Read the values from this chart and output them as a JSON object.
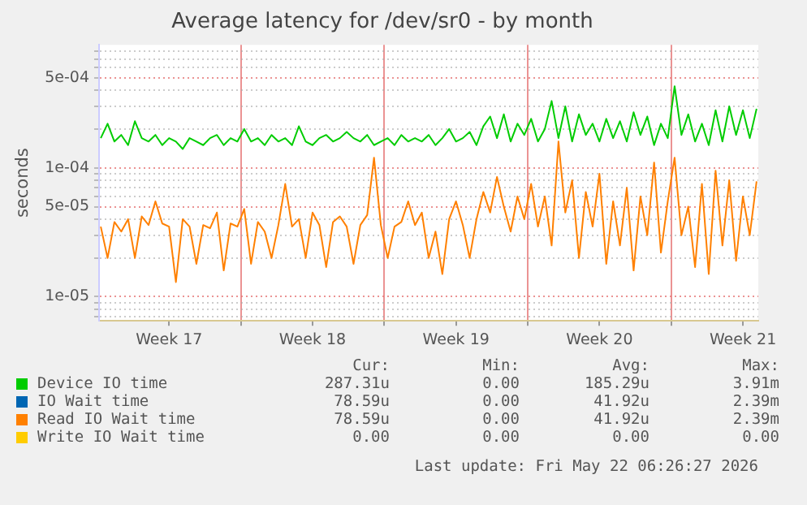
{
  "chart_data": {
    "type": "line",
    "title": "Average latency for /dev/sr0 - by month",
    "ylabel": "seconds",
    "log": "y",
    "grid": true,
    "legend": "bottom",
    "marker": "none",
    "line_style": "solid",
    "xlim": [
      "2026-04-20T02:00",
      "2026-05-22T06:00"
    ],
    "xticks": [
      {
        "value": "2026-04-23T12:00",
        "label": "Week 17"
      },
      {
        "value": "2026-04-27T00:00",
        "label": null
      },
      {
        "value": "2026-04-30T12:00",
        "label": "Week 18"
      },
      {
        "value": "2026-05-04T00:00",
        "label": null
      },
      {
        "value": "2026-05-07T12:00",
        "label": "Week 19"
      },
      {
        "value": "2026-05-11T00:00",
        "label": null
      },
      {
        "value": "2026-05-14T12:00",
        "label": "Week 20"
      },
      {
        "value": "2026-05-18T00:00",
        "label": null
      },
      {
        "value": "2026-05-21T12:00",
        "label": "Week 21"
      }
    ],
    "ylim": [
      6.5e-06,
      0.0009
    ],
    "yticks": [
      {
        "value": 7e-06,
        "label": null
      },
      {
        "value": 8e-06,
        "label": null
      },
      {
        "value": 9e-06,
        "label": null
      },
      {
        "value": 1e-05,
        "label": "1e-05"
      },
      {
        "value": 2e-05,
        "label": null
      },
      {
        "value": 3e-05,
        "label": null
      },
      {
        "value": 4e-05,
        "label": null
      },
      {
        "value": 5e-05,
        "label": "5e-05"
      },
      {
        "value": 6e-05,
        "label": null
      },
      {
        "value": 7e-05,
        "label": null
      },
      {
        "value": 8e-05,
        "label": null
      },
      {
        "value": 9e-05,
        "label": null
      },
      {
        "value": 0.0001,
        "label": "1e-04"
      },
      {
        "value": 0.0002,
        "label": null
      },
      {
        "value": 0.0003,
        "label": null
      },
      {
        "value": 0.0004,
        "label": null
      },
      {
        "value": 0.0005,
        "label": "5e-04"
      },
      {
        "value": 0.0006,
        "label": null
      },
      {
        "value": 0.0007,
        "label": null
      },
      {
        "value": 0.0008,
        "label": null
      }
    ],
    "x": [
      "2026-04-20T04:00",
      "2026-04-20T12:00",
      "2026-04-20T20:00",
      "2026-04-21T04:00",
      "2026-04-21T12:00",
      "2026-04-21T20:00",
      "2026-04-22T04:00",
      "2026-04-22T12:00",
      "2026-04-22T20:00",
      "2026-04-23T04:00",
      "2026-04-23T12:00",
      "2026-04-23T20:00",
      "2026-04-24T04:00",
      "2026-04-24T12:00",
      "2026-04-24T20:00",
      "2026-04-25T04:00",
      "2026-04-25T12:00",
      "2026-04-25T20:00",
      "2026-04-26T04:00",
      "2026-04-26T12:00",
      "2026-04-26T20:00",
      "2026-04-27T04:00",
      "2026-04-27T12:00",
      "2026-04-27T20:00",
      "2026-04-28T04:00",
      "2026-04-28T12:00",
      "2026-04-28T20:00",
      "2026-04-29T04:00",
      "2026-04-29T12:00",
      "2026-04-29T20:00",
      "2026-04-30T04:00",
      "2026-04-30T12:00",
      "2026-04-30T20:00",
      "2026-05-01T04:00",
      "2026-05-01T12:00",
      "2026-05-01T20:00",
      "2026-05-02T04:00",
      "2026-05-02T12:00",
      "2026-05-02T20:00",
      "2026-05-03T04:00",
      "2026-05-03T12:00",
      "2026-05-03T20:00",
      "2026-05-04T04:00",
      "2026-05-04T12:00",
      "2026-05-04T20:00",
      "2026-05-05T04:00",
      "2026-05-05T12:00",
      "2026-05-05T20:00",
      "2026-05-06T04:00",
      "2026-05-06T12:00",
      "2026-05-06T20:00",
      "2026-05-07T04:00",
      "2026-05-07T12:00",
      "2026-05-07T20:00",
      "2026-05-08T04:00",
      "2026-05-08T12:00",
      "2026-05-08T20:00",
      "2026-05-09T04:00",
      "2026-05-09T12:00",
      "2026-05-09T20:00",
      "2026-05-10T04:00",
      "2026-05-10T12:00",
      "2026-05-10T20:00",
      "2026-05-11T04:00",
      "2026-05-11T12:00",
      "2026-05-11T20:00",
      "2026-05-12T04:00",
      "2026-05-12T12:00",
      "2026-05-12T20:00",
      "2026-05-13T04:00",
      "2026-05-13T12:00",
      "2026-05-13T20:00",
      "2026-05-14T04:00",
      "2026-05-14T12:00",
      "2026-05-14T20:00",
      "2026-05-15T04:00",
      "2026-05-15T12:00",
      "2026-05-15T20:00",
      "2026-05-16T04:00",
      "2026-05-16T12:00",
      "2026-05-16T20:00",
      "2026-05-17T04:00",
      "2026-05-17T12:00",
      "2026-05-17T20:00",
      "2026-05-18T04:00",
      "2026-05-18T12:00",
      "2026-05-18T20:00",
      "2026-05-19T04:00",
      "2026-05-19T12:00",
      "2026-05-19T20:00",
      "2026-05-20T04:00",
      "2026-05-20T12:00",
      "2026-05-20T20:00",
      "2026-05-21T04:00",
      "2026-05-21T12:00",
      "2026-05-21T20:00",
      "2026-05-22T04:00"
    ],
    "series": [
      {
        "name": "Device IO time",
        "color": "#00cc00",
        "values": [
          0.00017,
          0.00022,
          0.00016,
          0.00018,
          0.00015,
          0.00023,
          0.00017,
          0.00016,
          0.00018,
          0.00015,
          0.00017,
          0.00016,
          0.00014,
          0.00017,
          0.00016,
          0.00015,
          0.00017,
          0.00018,
          0.00015,
          0.00017,
          0.00016,
          0.0002,
          0.00016,
          0.00017,
          0.00015,
          0.00018,
          0.00016,
          0.00017,
          0.00015,
          0.00021,
          0.00016,
          0.00015,
          0.00017,
          0.00018,
          0.00016,
          0.00017,
          0.00019,
          0.00017,
          0.00016,
          0.00018,
          0.00015,
          0.00016,
          0.00017,
          0.00015,
          0.00018,
          0.00016,
          0.00017,
          0.00016,
          0.00018,
          0.00015,
          0.00017,
          0.0002,
          0.00016,
          0.00017,
          0.00019,
          0.00015,
          0.00021,
          0.00025,
          0.00017,
          0.00026,
          0.00016,
          0.00022,
          0.00018,
          0.00024,
          0.00016,
          0.0002,
          0.00033,
          0.00017,
          0.0003,
          0.00016,
          0.00026,
          0.00018,
          0.00022,
          0.00016,
          0.00024,
          0.00017,
          0.00023,
          0.00016,
          0.00027,
          0.00018,
          0.00025,
          0.00015,
          0.00022,
          0.00017,
          0.00043,
          0.00018,
          0.00026,
          0.00016,
          0.00022,
          0.00015,
          0.00028,
          0.00016,
          0.0003,
          0.00018,
          0.00028,
          0.00017,
          0.000287
        ]
      },
      {
        "name": "IO Wait time",
        "color": "#0066b3",
        "values": [
          null,
          null,
          null,
          null,
          null,
          null,
          null,
          null,
          null,
          null,
          null,
          null,
          null,
          null,
          null,
          null,
          null,
          null,
          null,
          null,
          null,
          null,
          null,
          null,
          null,
          null,
          null,
          null,
          null,
          null,
          null,
          null,
          null,
          null,
          null,
          null,
          null,
          null,
          null,
          null,
          null,
          null,
          null,
          null,
          null,
          null,
          null,
          null,
          null,
          null,
          null,
          null,
          null,
          null,
          null,
          null,
          null,
          null,
          null,
          null,
          null,
          null,
          null,
          null,
          null,
          null,
          null,
          null,
          null,
          null,
          null,
          null,
          null,
          null,
          null,
          null,
          null,
          null,
          null,
          null,
          null,
          null,
          null,
          null,
          null,
          null,
          null,
          null,
          null,
          null,
          null,
          null,
          null,
          null,
          null,
          null,
          null
        ]
      },
      {
        "name": "Read IO Wait time",
        "color": "#ff8000",
        "values": [
          3.5e-05,
          2e-05,
          3.8e-05,
          3.2e-05,
          4e-05,
          2e-05,
          4.2e-05,
          3.6e-05,
          5.5e-05,
          3.7e-05,
          3.5e-05,
          1.3e-05,
          4e-05,
          3.5e-05,
          1.8e-05,
          3.6e-05,
          3.4e-05,
          4.5e-05,
          1.6e-05,
          3.7e-05,
          3.5e-05,
          4.8e-05,
          1.8e-05,
          3.8e-05,
          3.2e-05,
          2e-05,
          3.6e-05,
          7.5e-05,
          3.5e-05,
          4e-05,
          2e-05,
          4.5e-05,
          3.6e-05,
          1.7e-05,
          3.8e-05,
          4.2e-05,
          3.5e-05,
          1.8e-05,
          3.6e-05,
          4.3e-05,
          0.00012,
          3.6e-05,
          2e-05,
          3.5e-05,
          3.8e-05,
          5.5e-05,
          3.6e-05,
          4.5e-05,
          2e-05,
          3.2e-05,
          1.5e-05,
          4e-05,
          5.5e-05,
          3.6e-05,
          2e-05,
          4e-05,
          6.5e-05,
          4.5e-05,
          8.5e-05,
          5e-05,
          3.2e-05,
          6e-05,
          4e-05,
          7.5e-05,
          3.5e-05,
          6e-05,
          2.5e-05,
          0.00016,
          4.5e-05,
          8e-05,
          2e-05,
          6.5e-05,
          3.5e-05,
          9e-05,
          1.8e-05,
          5.5e-05,
          2.5e-05,
          7e-05,
          1.6e-05,
          6e-05,
          3e-05,
          0.00011,
          2.2e-05,
          5.5e-05,
          0.00012,
          3e-05,
          5e-05,
          1.7e-05,
          7.5e-05,
          1.5e-05,
          9.5e-05,
          2.5e-05,
          8e-05,
          1.9e-05,
          6e-05,
          3e-05,
          7.86e-05
        ]
      },
      {
        "name": "Write IO Wait time",
        "color": "#ffcc00",
        "values": [
          null,
          null,
          null,
          null,
          null,
          null,
          null,
          null,
          null,
          null,
          null,
          null,
          null,
          null,
          null,
          null,
          null,
          null,
          null,
          null,
          null,
          null,
          null,
          null,
          null,
          null,
          null,
          null,
          null,
          null,
          null,
          null,
          null,
          null,
          null,
          null,
          null,
          null,
          null,
          null,
          null,
          null,
          null,
          null,
          null,
          null,
          null,
          null,
          null,
          null,
          null,
          null,
          null,
          null,
          null,
          null,
          null,
          null,
          null,
          null,
          null,
          null,
          null,
          null,
          null,
          null,
          null,
          null,
          null,
          null,
          null,
          null,
          null,
          null,
          null,
          null,
          null,
          null,
          null,
          null,
          null,
          null,
          null,
          null,
          null,
          null,
          null,
          null,
          null,
          null,
          null,
          null,
          null,
          null,
          null,
          null,
          null
        ]
      }
    ],
    "annotations": [
      "Cur:",
      "Min:",
      "Avg:",
      "Max:",
      "287.31u",
      "0.00",
      "185.29u",
      "3.91m",
      "78.59u",
      "0.00",
      "41.92u",
      "2.39m",
      "78.59u",
      "0.00",
      "41.92u",
      "2.39m",
      "0.00",
      "0.00",
      "0.00",
      "0.00",
      "Last update: Fri May 22 06:26:27 2026"
    ]
  }
}
